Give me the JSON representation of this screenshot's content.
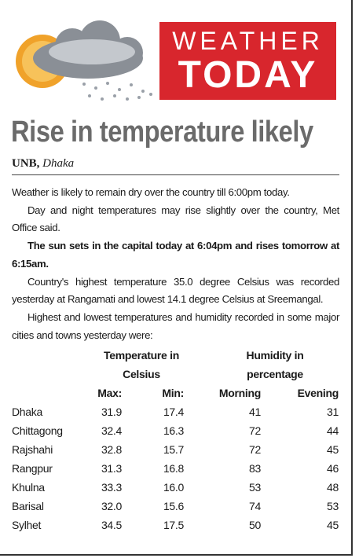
{
  "header": {
    "banner_top": "WEATHER",
    "banner_bottom": "TODAY"
  },
  "headline": "Rise in temperature likely",
  "byline": {
    "agency": "UNB,",
    "place": "Dhaka"
  },
  "paragraphs": [
    "Weather is likely to remain dry over the country till 6:00pm today.",
    "Day and night temperatures may rise slightly over the country, Met Office said.",
    "The sun sets in the capital today at 6:04pm and rises tomorrow at 6:15am.",
    "Country's highest temperature 35.0 degree Celsius was recorded yesterday at Rangamati and lowest 14.1 degree Celsius at Sreemangal.",
    "Highest and lowest temperatures and humidity recorded in some major cities and towns yesterday were:"
  ],
  "table": {
    "group_headers": [
      "Temperature in Celsius",
      "Humidity in percentage"
    ],
    "columns": [
      "Max:",
      "Min:",
      "Morning",
      "Evening"
    ],
    "rows": [
      [
        "Dhaka",
        "31.9",
        "17.4",
        "41",
        "31"
      ],
      [
        "Chittagong",
        "32.4",
        "16.3",
        "72",
        "44"
      ],
      [
        "Rajshahi",
        "32.8",
        "15.7",
        "72",
        "45"
      ],
      [
        "Rangpur",
        "31.3",
        "16.8",
        "83",
        "46"
      ],
      [
        "Khulna",
        "33.3",
        "16.0",
        "53",
        "48"
      ],
      [
        "Barisal",
        "32.0",
        "15.6",
        "74",
        "53"
      ],
      [
        "Sylhet",
        "34.5",
        "17.5",
        "50",
        "45"
      ]
    ]
  }
}
